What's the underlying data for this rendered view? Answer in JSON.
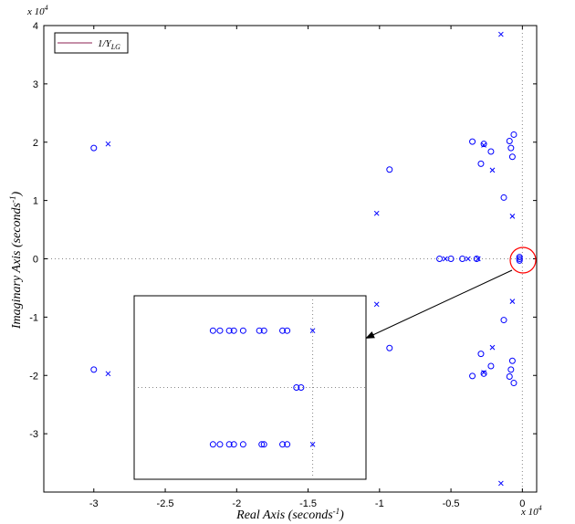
{
  "chart_data": {
    "type": "scatter",
    "title": "",
    "xlabel": {
      "text": "Real Axis (seconds",
      "sup": "-1",
      "end": ")"
    },
    "ylabel": {
      "text": "Imaginary Axis (seconds",
      "sup": "-1",
      "end": ")"
    },
    "x_exponent": {
      "base": "x 10",
      "power": "4"
    },
    "y_exponent": {
      "base": "x 10",
      "power": "4"
    },
    "xlim": [
      -3.35,
      0.1
    ],
    "ylim": [
      -4.0,
      4.0
    ],
    "x_ticks": [
      -3,
      -2.5,
      -2,
      -1.5,
      -1,
      -0.5,
      0
    ],
    "x_tick_labels": [
      "-3",
      "-2.5",
      "-2",
      "-1.5",
      "-1",
      "-0.5",
      "0"
    ],
    "y_ticks": [
      -3,
      -2,
      -1,
      0,
      1,
      2,
      3,
      4
    ],
    "y_tick_labels": [
      "-3",
      "-2",
      "-1",
      "0",
      "1",
      "2",
      "3",
      "4"
    ],
    "grid": false,
    "legend": {
      "position": "top-left",
      "label_main": "1/Y",
      "label_sub": "LG"
    },
    "colors": {
      "markers": "#0000ff",
      "legend_line": "#8b2252",
      "highlight": "#ff0000",
      "arrow": "#000000"
    },
    "series": [
      {
        "marker": "x",
        "points": [
          [
            -0.15,
            3.85
          ],
          [
            -0.15,
            -3.85
          ],
          [
            -2.9,
            1.97
          ],
          [
            -2.9,
            -1.97
          ],
          [
            -1.02,
            0.78
          ],
          [
            -1.02,
            -0.78
          ],
          [
            -0.21,
            1.52
          ],
          [
            -0.21,
            -1.52
          ],
          [
            -0.07,
            0.73
          ],
          [
            -0.07,
            -0.73
          ],
          [
            -0.27,
            1.95
          ],
          [
            -0.27,
            -1.95
          ],
          [
            -0.54,
            0.0
          ],
          [
            -0.38,
            0.0
          ],
          [
            -0.31,
            0.0
          ]
        ]
      },
      {
        "marker": "o",
        "points": [
          [
            -3.0,
            1.9
          ],
          [
            -3.0,
            -1.9
          ],
          [
            -0.93,
            1.53
          ],
          [
            -0.93,
            -1.53
          ],
          [
            -0.35,
            2.01
          ],
          [
            -0.35,
            -2.01
          ],
          [
            -0.27,
            1.97
          ],
          [
            -0.27,
            -1.97
          ],
          [
            -0.29,
            1.63
          ],
          [
            -0.29,
            -1.63
          ],
          [
            -0.22,
            1.84
          ],
          [
            -0.22,
            -1.84
          ],
          [
            -0.13,
            1.05
          ],
          [
            -0.13,
            -1.05
          ],
          [
            -0.06,
            2.13
          ],
          [
            -0.06,
            -2.13
          ],
          [
            -0.09,
            2.02
          ],
          [
            -0.09,
            -2.02
          ],
          [
            -0.08,
            1.9
          ],
          [
            -0.08,
            -1.9
          ],
          [
            -0.07,
            1.75
          ],
          [
            -0.07,
            -1.75
          ],
          [
            -0.58,
            0.0
          ],
          [
            -0.5,
            0.0
          ],
          [
            -0.42,
            0.0
          ],
          [
            -0.32,
            0.0
          ],
          [
            -0.02,
            0.03
          ],
          [
            -0.02,
            -0.03
          ],
          [
            -0.02,
            0.0
          ]
        ]
      }
    ],
    "inset": {
      "xlim": [
        0.0,
        1.0
      ],
      "ylim": [
        -1.0,
        1.0
      ],
      "dotted_x": 0.77,
      "dotted_y": 0.0,
      "series": [
        {
          "marker": "o",
          "points": [
            [
              0.34,
              0.62
            ],
            [
              0.37,
              0.62
            ],
            [
              0.41,
              0.62
            ],
            [
              0.43,
              0.62
            ],
            [
              0.47,
              0.62
            ],
            [
              0.54,
              0.62
            ],
            [
              0.56,
              0.62
            ],
            [
              0.64,
              0.62
            ],
            [
              0.66,
              0.62
            ],
            [
              0.34,
              -0.62
            ],
            [
              0.37,
              -0.62
            ],
            [
              0.41,
              -0.62
            ],
            [
              0.43,
              -0.62
            ],
            [
              0.47,
              -0.62
            ],
            [
              0.55,
              -0.62
            ],
            [
              0.56,
              -0.62
            ],
            [
              0.64,
              -0.62
            ],
            [
              0.66,
              -0.62
            ],
            [
              0.7,
              0.0
            ],
            [
              0.72,
              0.0
            ]
          ]
        },
        {
          "marker": "x",
          "points": [
            [
              0.77,
              0.62
            ],
            [
              0.77,
              -0.62
            ]
          ]
        }
      ]
    }
  }
}
